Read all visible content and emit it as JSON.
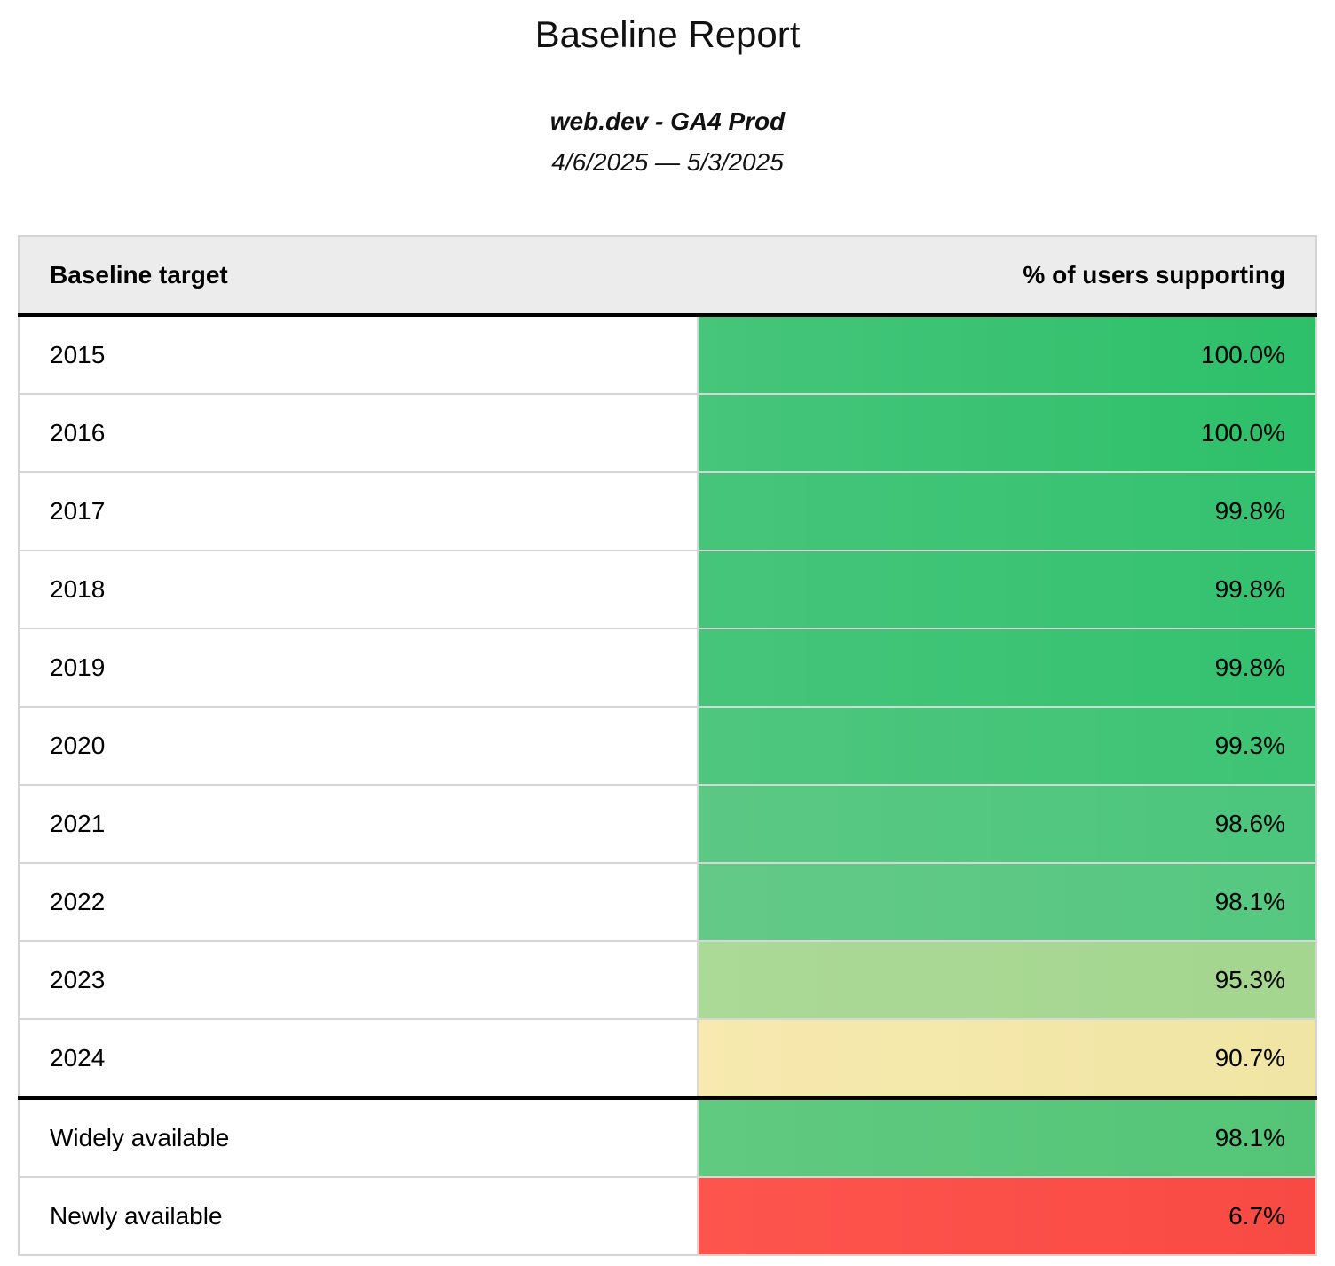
{
  "page": {
    "title": "Baseline Report",
    "subtitle": "web.dev - GA4 Prod",
    "date_range": "4/6/2025 — 5/3/2025"
  },
  "table": {
    "header": {
      "target_label": "Baseline target",
      "value_label": "% of users supporting"
    },
    "rows": [
      {
        "target": "2015",
        "value": "100.0%",
        "color_left": "#46c57b",
        "color_right": "#2dc069"
      },
      {
        "target": "2016",
        "value": "100.0%",
        "color_left": "#46c57b",
        "color_right": "#2dc069"
      },
      {
        "target": "2017",
        "value": "99.8%",
        "color_left": "#46c57a",
        "color_right": "#33c26f"
      },
      {
        "target": "2018",
        "value": "99.8%",
        "color_left": "#46c57a",
        "color_right": "#33c26f"
      },
      {
        "target": "2019",
        "value": "99.8%",
        "color_left": "#46c57a",
        "color_right": "#33c26f"
      },
      {
        "target": "2020",
        "value": "99.3%",
        "color_left": "#4fc67e",
        "color_right": "#3dc474"
      },
      {
        "target": "2021",
        "value": "98.6%",
        "color_left": "#5bc884",
        "color_right": "#4bc67c"
      },
      {
        "target": "2022",
        "value": "98.1%",
        "color_left": "#63c987",
        "color_right": "#55c880"
      },
      {
        "target": "2023",
        "value": "95.3%",
        "color_left": "#abd996",
        "color_right": "#a4d68f"
      },
      {
        "target": "2024",
        "value": "90.7%",
        "color_left": "#f7e9af",
        "color_right": "#f0e5a3"
      },
      {
        "target": "Widely available",
        "value": "98.1%",
        "color_left": "#60ca80",
        "color_right": "#54c577"
      },
      {
        "target": "Newly available",
        "value": "6.7%",
        "color_left": "#fd554d",
        "color_right": "#f84a43"
      }
    ]
  },
  "colors": {
    "header_bg": "#ececec",
    "table_border": "#d4d4d4",
    "row_border": "#d6d6d6",
    "group_separator": "#000000",
    "text": "#000000"
  },
  "chart_data": {
    "type": "table",
    "title": "Baseline Report",
    "subtitle": "web.dev - GA4 Prod",
    "date_range": "4/6/2025 — 5/3/2025",
    "columns": [
      "Baseline target",
      "% of users supporting"
    ],
    "categories": [
      "2015",
      "2016",
      "2017",
      "2018",
      "2019",
      "2020",
      "2021",
      "2022",
      "2023",
      "2024",
      "Widely available",
      "Newly available"
    ],
    "values": [
      100.0,
      100.0,
      99.8,
      99.8,
      99.8,
      99.3,
      98.6,
      98.1,
      95.3,
      90.7,
      98.1,
      6.7
    ],
    "value_unit": "%",
    "layout_hints": {
      "cell_fill": "red-yellow-green heatmap colored by value, subtle light-to-dark left-right gradient per cell",
      "group_separator_after_row": "2024",
      "value_alignment": "right"
    }
  }
}
